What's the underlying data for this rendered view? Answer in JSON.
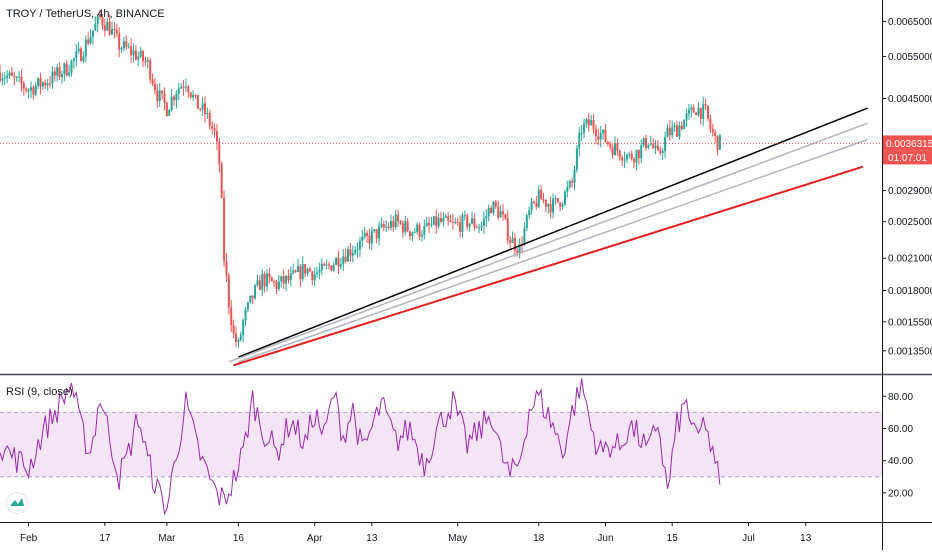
{
  "header": {
    "symbol_title": "TROY / TetherUS, 4h, BINANCE"
  },
  "rsi_panel": {
    "title": "RSI (9, close)"
  },
  "colors": {
    "up_candle": "#26a69a",
    "down_candle": "#ef5350",
    "rsi_line": "#9c27b0",
    "rsi_band": "#f3e5f5",
    "last_price_line": "#ef5350",
    "trendline_black": "#000000",
    "trendline_red": "#e91e1e",
    "trendline_gray": "#b2b5be"
  },
  "chart_data": [
    {
      "type": "candlestick",
      "scale": "log",
      "price_axis_labels": [
        "0.0065000",
        "0.0055000",
        "0.0045000",
        "0.0036315",
        "0.0029000",
        "0.0025000",
        "0.0021000",
        "0.0018000",
        "0.0015500",
        "0.0013500"
      ],
      "price_ticks": [
        0.0065,
        0.0055,
        0.0045,
        0.0029,
        0.0025,
        0.0021,
        0.0018,
        0.00155,
        0.00135
      ],
      "last_price": 0.0036315,
      "last_price_label": "0.0036315",
      "countdown_label": "01:07:01",
      "ylim": [
        0.00122,
        0.0072
      ],
      "time_axis_labels": [
        "Feb",
        "17",
        "Mar",
        "16",
        "Apr",
        "13",
        "May",
        "18",
        "Jun",
        "15",
        "Jul",
        "13"
      ],
      "time_label_days": [
        0,
        16,
        29,
        44,
        60,
        72,
        90,
        107,
        121,
        135,
        151,
        163
      ],
      "xlim_days": [
        -6,
        179
      ],
      "price_path": [
        [
          -6,
          0.0051
        ],
        [
          -3,
          0.0049
        ],
        [
          0,
          0.0047
        ],
        [
          4,
          0.0049
        ],
        [
          8,
          0.0052
        ],
        [
          11,
          0.0056
        ],
        [
          13,
          0.0061
        ],
        [
          15,
          0.0066
        ],
        [
          17,
          0.0063
        ],
        [
          19,
          0.0058
        ],
        [
          22,
          0.0056
        ],
        [
          25,
          0.0053
        ],
        [
          27,
          0.0046
        ],
        [
          29,
          0.0043
        ],
        [
          31,
          0.0047
        ],
        [
          33,
          0.0049
        ],
        [
          35,
          0.0044
        ],
        [
          37,
          0.0042
        ],
        [
          39,
          0.0038
        ],
        [
          40,
          0.0033
        ],
        [
          41,
          0.0021
        ],
        [
          42,
          0.0017
        ],
        [
          43,
          0.00145
        ],
        [
          44,
          0.00138
        ],
        [
          45,
          0.00155
        ],
        [
          47,
          0.00175
        ],
        [
          49,
          0.0019
        ],
        [
          52,
          0.00185
        ],
        [
          55,
          0.0019
        ],
        [
          58,
          0.002
        ],
        [
          60,
          0.00195
        ],
        [
          62,
          0.00198
        ],
        [
          65,
          0.0021
        ],
        [
          68,
          0.0022
        ],
        [
          71,
          0.0023
        ],
        [
          74,
          0.0024
        ],
        [
          77,
          0.0025
        ],
        [
          80,
          0.0024
        ],
        [
          83,
          0.0024
        ],
        [
          86,
          0.0025
        ],
        [
          89,
          0.00245
        ],
        [
          92,
          0.0025
        ],
        [
          95,
          0.00245
        ],
        [
          97,
          0.0027
        ],
        [
          99,
          0.0026
        ],
        [
          101,
          0.0023
        ],
        [
          103,
          0.0022
        ],
        [
          105,
          0.0026
        ],
        [
          107,
          0.0028
        ],
        [
          110,
          0.0027
        ],
        [
          112,
          0.0028
        ],
        [
          114,
          0.003
        ],
        [
          116,
          0.0039
        ],
        [
          118,
          0.004
        ],
        [
          120,
          0.0038
        ],
        [
          122,
          0.0036
        ],
        [
          124,
          0.0035
        ],
        [
          126,
          0.0034
        ],
        [
          128,
          0.0035
        ],
        [
          130,
          0.0037
        ],
        [
          132,
          0.0034
        ],
        [
          134,
          0.0038
        ],
        [
          136,
          0.0039
        ],
        [
          138,
          0.0041
        ],
        [
          140,
          0.0043
        ],
        [
          142,
          0.0042
        ],
        [
          143,
          0.0039
        ],
        [
          144,
          0.0037
        ],
        [
          145,
          0.0036315
        ]
      ],
      "trendlines": [
        {
          "color": "black",
          "from": [
            44,
            0.00131
          ],
          "to": [
            176,
            0.0043
          ]
        },
        {
          "color": "gray",
          "from": [
            42,
            0.00128
          ],
          "to": [
            176,
            0.004
          ]
        },
        {
          "color": "gray",
          "from": [
            44,
            0.00128
          ],
          "to": [
            176,
            0.0037
          ]
        },
        {
          "color": "red",
          "from": [
            43,
            0.00126
          ],
          "to": [
            175,
            0.00325
          ]
        }
      ]
    },
    {
      "type": "line",
      "y_axis_labels": [
        "80.00",
        "60.00",
        "40.00",
        "20.00"
      ],
      "y_ticks": [
        80,
        60,
        40,
        20
      ],
      "band": [
        30,
        70
      ],
      "ylim": [
        5,
        92
      ],
      "rsi_path": [
        [
          -6,
          50
        ],
        [
          -3,
          42
        ],
        [
          0,
          35
        ],
        [
          3,
          58
        ],
        [
          6,
          72
        ],
        [
          9,
          88
        ],
        [
          11,
          60
        ],
        [
          13,
          45
        ],
        [
          15,
          80
        ],
        [
          17,
          55
        ],
        [
          19,
          30
        ],
        [
          21,
          45
        ],
        [
          23,
          68
        ],
        [
          25,
          40
        ],
        [
          27,
          22
        ],
        [
          29,
          10
        ],
        [
          31,
          45
        ],
        [
          33,
          75
        ],
        [
          35,
          52
        ],
        [
          37,
          35
        ],
        [
          39,
          22
        ],
        [
          40,
          18
        ],
        [
          41,
          15
        ],
        [
          43,
          28
        ],
        [
          45,
          45
        ],
        [
          47,
          78
        ],
        [
          49,
          60
        ],
        [
          52,
          45
        ],
        [
          55,
          65
        ],
        [
          58,
          50
        ],
        [
          60,
          70
        ],
        [
          62,
          55
        ],
        [
          64,
          82
        ],
        [
          66,
          55
        ],
        [
          68,
          72
        ],
        [
          70,
          45
        ],
        [
          72,
          60
        ],
        [
          74,
          75
        ],
        [
          77,
          52
        ],
        [
          80,
          60
        ],
        [
          83,
          38
        ],
        [
          86,
          62
        ],
        [
          89,
          76
        ],
        [
          92,
          50
        ],
        [
          95,
          60
        ],
        [
          97,
          70
        ],
        [
          99,
          45
        ],
        [
          101,
          30
        ],
        [
          103,
          40
        ],
        [
          105,
          72
        ],
        [
          107,
          80
        ],
        [
          110,
          62
        ],
        [
          112,
          45
        ],
        [
          114,
          70
        ],
        [
          116,
          90
        ],
        [
          118,
          60
        ],
        [
          120,
          45
        ],
        [
          122,
          50
        ],
        [
          124,
          48
        ],
        [
          126,
          62
        ],
        [
          128,
          55
        ],
        [
          130,
          45
        ],
        [
          132,
          65
        ],
        [
          134,
          20
        ],
        [
          136,
          62
        ],
        [
          138,
          76
        ],
        [
          140,
          52
        ],
        [
          142,
          65
        ],
        [
          143,
          48
        ],
        [
          144,
          35
        ],
        [
          145,
          30
        ]
      ]
    }
  ]
}
